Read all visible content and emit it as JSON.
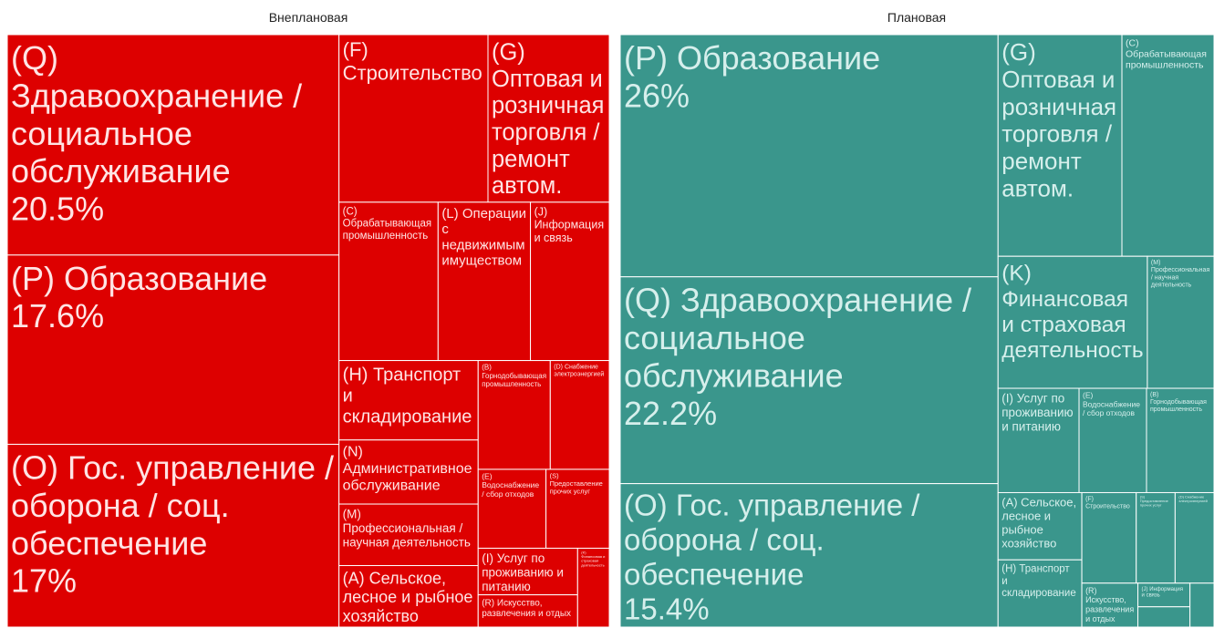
{
  "chart_data": [
    {
      "type": "treemap",
      "title": "Внеплановая",
      "color": "#dd0000",
      "text_color": "#ffe4e4",
      "categories": [
        "(Q) Здравоохранение / социальное обслуживание",
        "(P) Образование",
        "(O) Гос. управление / оборона / соц. обеспечение",
        "(F) Строительство",
        "(G) Оптовая и розничная торговля / ремонт автом.",
        "(C) Обрабатывающая промышленность",
        "(L) Операции с недвижимым имуществом",
        "(J) Информация и связь",
        "(H) Транспорт и складирование",
        "(N) Административное обслуживание",
        "(M) Профессиональная / научная деятельность",
        "(A) Сельское, лесное и рыбное хозяйство",
        "(B) Горнодобывающая промышленность",
        "(D) Снабжение электроэнергией",
        "(E) Водоснабжение / сбор отходов",
        "(S) Предоставление прочих услуг",
        "(I) Услуг по проживанию и питанию",
        "(R) Искусство, развлечения и отдых",
        "(K) Финансовая и страховая деятельность"
      ],
      "values": [
        20.5,
        17.6,
        17,
        7,
        5.7,
        4.4,
        4.1,
        3.5,
        3.1,
        2.5,
        2.4,
        2.4,
        2.2,
        1.8,
        1.5,
        1.4,
        1.3,
        0.9,
        0.7
      ],
      "value_labels": [
        "20.5%",
        "17.6%",
        "17%",
        null,
        null,
        null,
        null,
        null,
        null,
        null,
        null,
        null,
        null,
        null,
        null,
        null,
        null,
        null,
        null
      ]
    },
    {
      "type": "treemap",
      "title": "Плановая",
      "color": "#3a968c",
      "text_color": "#d6efec",
      "categories": [
        "(P) Образование",
        "(Q) Здравоохранение / социальное обслуживание",
        "(O) Гос. управление / оборона / соц. обеспечение",
        "(G) Оптовая и розничная торговля / ремонт автом.",
        "(C) Обрабатывающая промышленность",
        "(K) Финансовая и страховая деятельность",
        "(M) Профессиональная / научная деятельность",
        "(I) Услуг по проживанию и питанию",
        "(E) Водоснабжение / сбор отходов",
        "(B) Горнодобывающая промышленность",
        "(A) Сельское, лесное и рыбное хозяйство",
        "(H) Транспорт и складирование",
        "(F) Строительство",
        "(S) Предоставление прочих услуг",
        "(D) Снабжение электроэнергией",
        "(R) Искусство, развлечения и отдых",
        "(J) Информация и связь",
        null,
        null
      ],
      "values": [
        26,
        22.2,
        15.4,
        7.8,
        5.8,
        5.6,
        2.5,
        2.4,
        2,
        2,
        1.6,
        1.6,
        1.4,
        1,
        1,
        0.7,
        0.35,
        0.3,
        0.3
      ],
      "value_labels": [
        "26%",
        "22.2%",
        "15.4%",
        null,
        null,
        null,
        null,
        null,
        null,
        null,
        null,
        null,
        null,
        null,
        null,
        null,
        null,
        null,
        null
      ]
    }
  ]
}
